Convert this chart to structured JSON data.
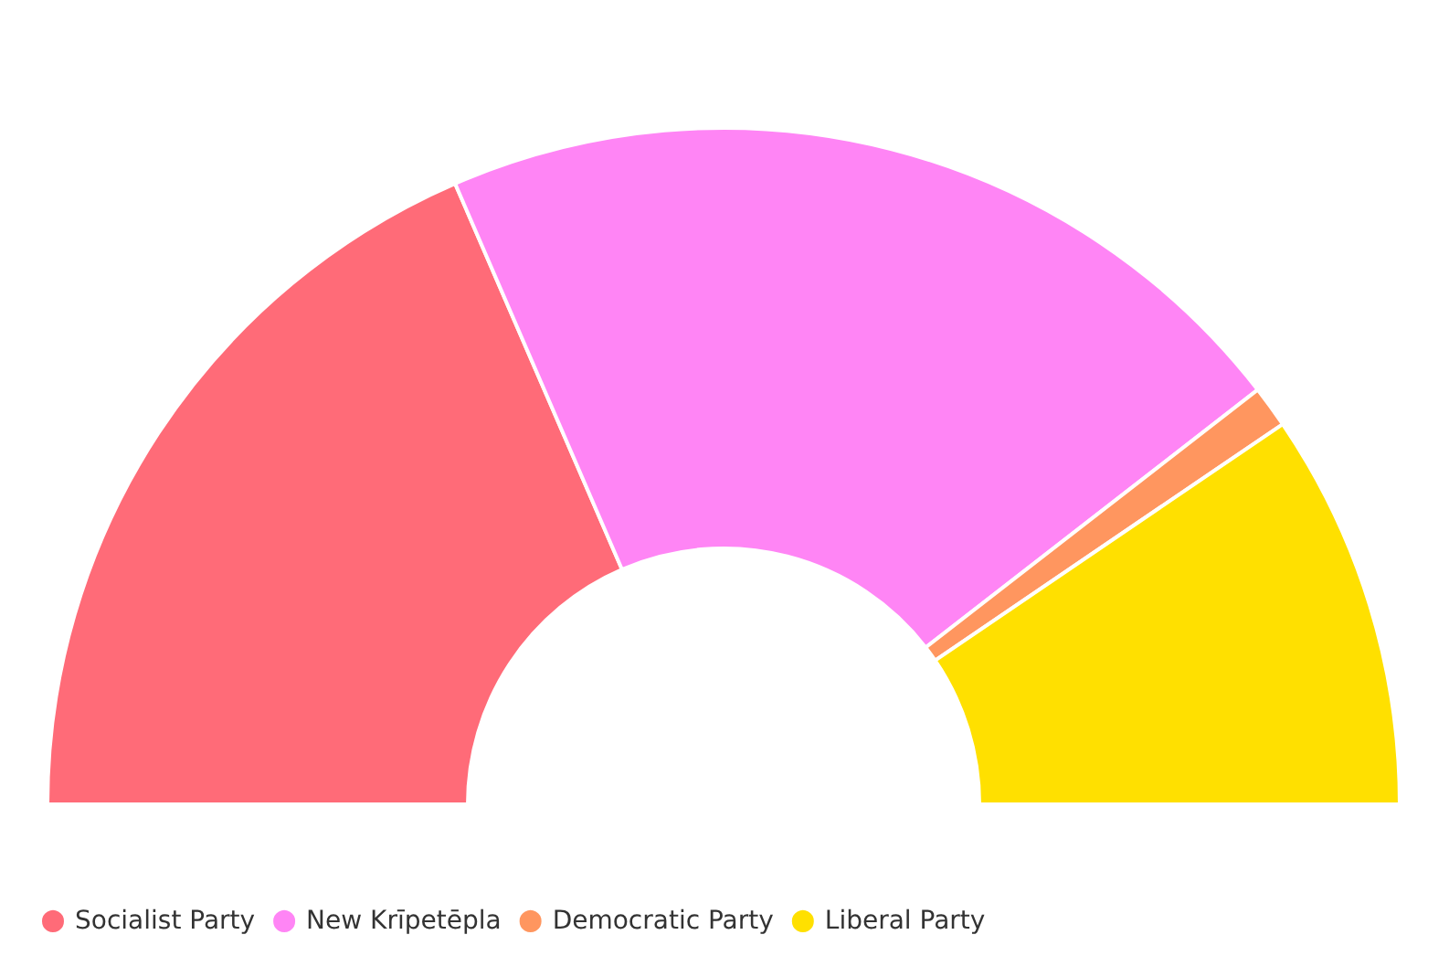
{
  "chart_data": {
    "type": "donut",
    "categories": [
      "Socialist Party",
      "New Krīpetēpla",
      "Democratic Party",
      "Liberal Party"
    ],
    "values": [
      37,
      42,
      2,
      19
    ],
    "colors": [
      "#ff6b78",
      "#ff85f5",
      "#ff965f",
      "#ffe000"
    ],
    "legend": "bottom left"
  }
}
